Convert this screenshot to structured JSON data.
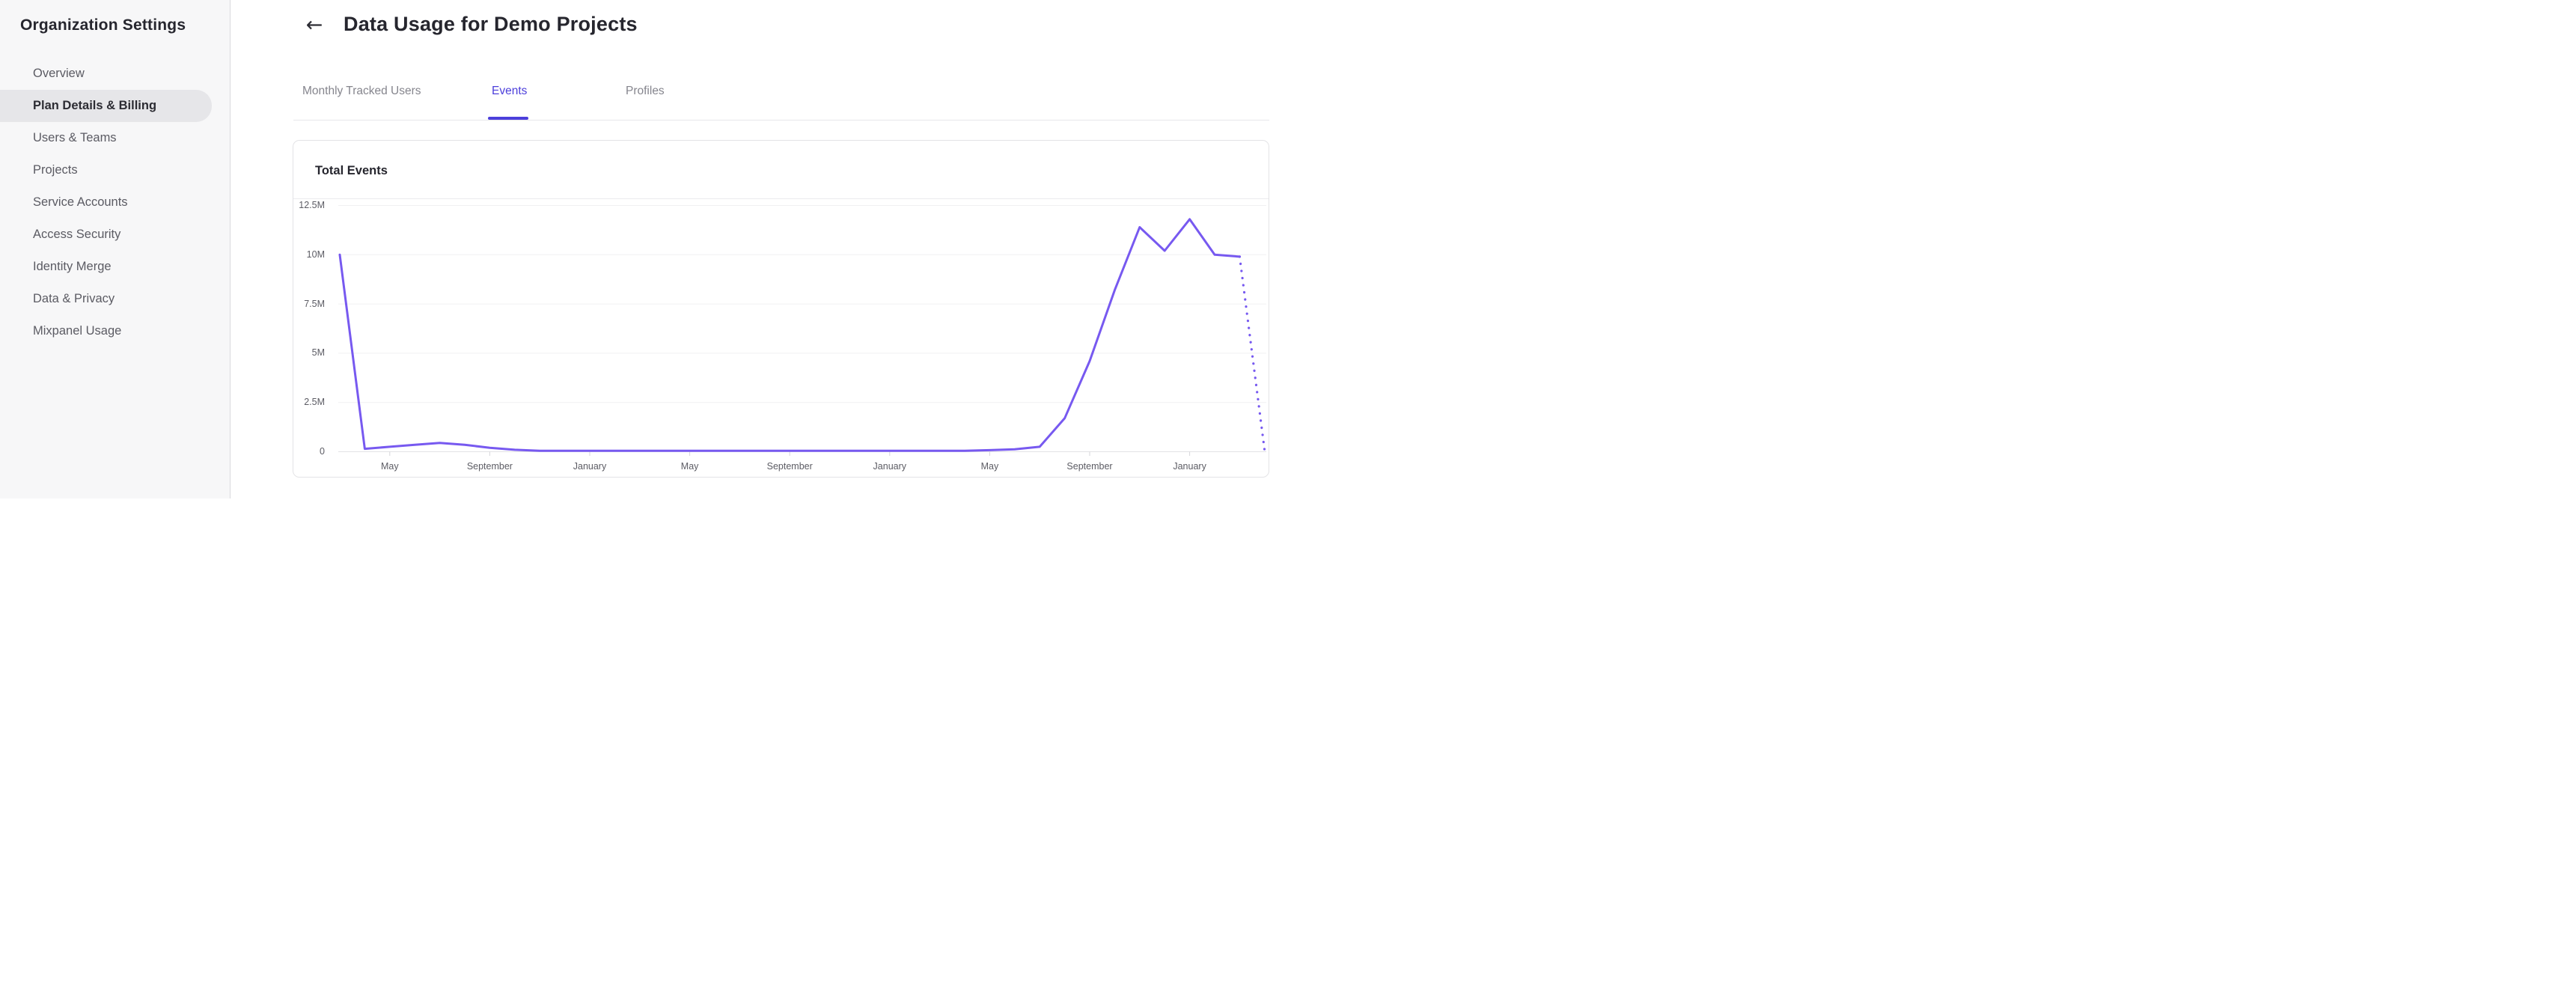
{
  "sidebar": {
    "title": "Organization Settings",
    "items": [
      {
        "label": "Overview",
        "active": false
      },
      {
        "label": "Plan Details & Billing",
        "active": true
      },
      {
        "label": "Users & Teams",
        "active": false
      },
      {
        "label": "Projects",
        "active": false
      },
      {
        "label": "Service Accounts",
        "active": false
      },
      {
        "label": "Access Security",
        "active": false
      },
      {
        "label": "Identity Merge",
        "active": false
      },
      {
        "label": "Data & Privacy",
        "active": false
      },
      {
        "label": "Mixpanel Usage",
        "active": false
      }
    ]
  },
  "header": {
    "back_icon": "←",
    "title": "Data Usage for Demo Projects"
  },
  "tabs": [
    {
      "label": "Monthly Tracked Users",
      "active": false
    },
    {
      "label": "Events",
      "active": true
    },
    {
      "label": "Profiles",
      "active": false
    }
  ],
  "card": {
    "title": "Total Events"
  },
  "colors": {
    "accent_tab": "#4c3fdb",
    "chart_line": "#7759f0",
    "gridline": "#f0f0f2",
    "axis_line": "#e2e2e5",
    "tick_mark": "#d6d6da",
    "sidebar_selected_bg": "#e6e6e9"
  },
  "chart_data": {
    "type": "line",
    "title": "Total Events",
    "x_unit": "month",
    "x_count": 38,
    "ylim_millions": [
      0,
      12.5
    ],
    "grid": "horizontal-only",
    "legend": "none",
    "ytick_labels": [
      "12.5M",
      "10M",
      "7.5M",
      "5M",
      "2.5M",
      "0"
    ],
    "ytick_values_millions": [
      12.5,
      10,
      7.5,
      5,
      2.5,
      0
    ],
    "xticks": [
      {
        "index": 2,
        "label": "May"
      },
      {
        "index": 6,
        "label": "September"
      },
      {
        "index": 10,
        "label": "January"
      },
      {
        "index": 14,
        "label": "May"
      },
      {
        "index": 18,
        "label": "September"
      },
      {
        "index": 22,
        "label": "January"
      },
      {
        "index": 26,
        "label": "May"
      },
      {
        "index": 30,
        "label": "September"
      },
      {
        "index": 34,
        "label": "January"
      }
    ],
    "series": [
      {
        "name": "Total Events",
        "values_millions": [
          10,
          0.15,
          0.25,
          0.35,
          0.45,
          0.35,
          0.2,
          0.1,
          0.05,
          0.05,
          0.05,
          0.05,
          0.05,
          0.05,
          0.05,
          0.05,
          0.05,
          0.05,
          0.05,
          0.05,
          0.05,
          0.05,
          0.05,
          0.05,
          0.05,
          0.05,
          0.08,
          0.12,
          0.25,
          1.7,
          4.6,
          8.2,
          11.4,
          10.2,
          11.8,
          10.0,
          9.9,
          0.05
        ],
        "projected_from_index": 36,
        "projected_style": "dotted"
      }
    ]
  }
}
